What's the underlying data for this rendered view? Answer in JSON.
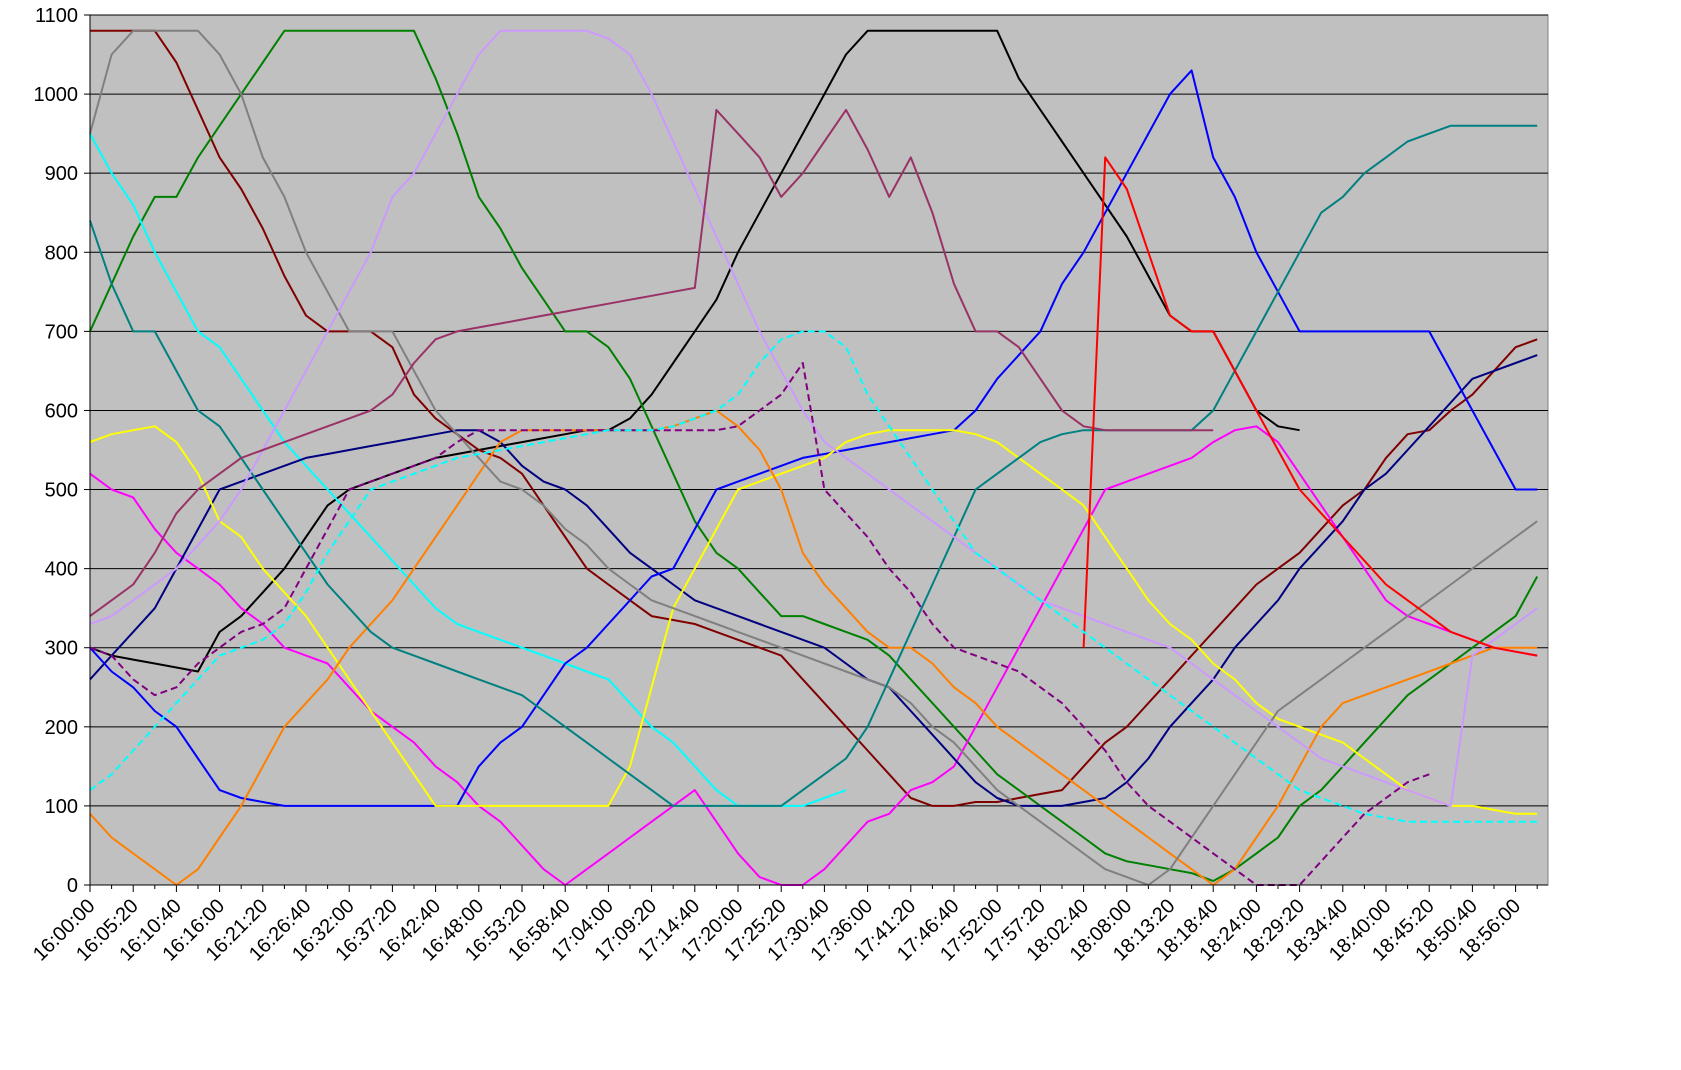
{
  "chart_data": {
    "type": "line",
    "categories": [
      "16:00:00",
      null,
      "16:05:20",
      null,
      "16:10:40",
      null,
      "16:16:00",
      null,
      "16:21:20",
      null,
      "16:26:40",
      null,
      "16:32:00",
      null,
      "16:37:20",
      null,
      "16:42:40",
      null,
      "16:48:00",
      null,
      "16:53:20",
      null,
      "16:58:40",
      null,
      "17:04:00",
      null,
      "17:09:20",
      null,
      "17:14:40",
      null,
      "17:20:00",
      null,
      "17:25:20",
      null,
      "17:30:40",
      null,
      "17:36:00",
      null,
      "17:41:20",
      null,
      "17:46:40",
      null,
      "17:52:00",
      null,
      "17:57:20",
      null,
      "18:02:40",
      null,
      "18:08:00",
      null,
      "18:13:20",
      null,
      "18:18:40",
      null,
      "18:24:00",
      null,
      "18:29:20",
      null,
      "18:34:40",
      null,
      "18:40:00",
      null,
      "18:45:20",
      null,
      "18:50:40",
      null,
      "18:56:00",
      null
    ],
    "ylim": [
      0,
      1100
    ],
    "yticks": [
      0,
      100,
      200,
      300,
      400,
      500,
      600,
      700,
      800,
      900,
      1000,
      1100
    ],
    "grid": true,
    "background": "#c0c0c0",
    "series": [
      {
        "color": "#000000",
        "values": [
          300,
          290,
          285,
          280,
          275,
          270,
          320,
          340,
          370,
          400,
          440,
          480,
          500,
          510,
          520,
          530,
          540,
          545,
          550,
          555,
          560,
          565,
          570,
          575,
          575,
          590,
          620,
          660,
          700,
          740,
          800,
          850,
          900,
          950,
          1000,
          1050,
          1080,
          1080,
          1080,
          1080,
          1080,
          1080,
          1080,
          1020,
          980,
          940,
          900,
          860,
          820,
          770,
          720,
          700,
          700,
          650,
          600,
          580,
          575,
          null,
          null,
          null,
          null,
          null,
          null,
          null,
          null,
          null,
          null,
          null
        ]
      },
      {
        "color": "#800000",
        "values": [
          1080,
          1080,
          1080,
          1080,
          1040,
          980,
          920,
          880,
          830,
          770,
          720,
          700,
          700,
          700,
          680,
          620,
          590,
          570,
          550,
          540,
          520,
          480,
          440,
          400,
          380,
          360,
          340,
          335,
          330,
          320,
          310,
          300,
          290,
          260,
          230,
          200,
          170,
          140,
          110,
          100,
          100,
          105,
          105,
          110,
          115,
          120,
          150,
          180,
          200,
          230,
          260,
          290,
          320,
          350,
          380,
          400,
          420,
          450,
          480,
          500,
          540,
          570,
          575,
          600,
          620,
          650,
          680,
          690
        ]
      },
      {
        "color": "#008000",
        "values": [
          700,
          760,
          820,
          870,
          870,
          920,
          960,
          1000,
          1040,
          1080,
          1080,
          1080,
          1080,
          1080,
          1080,
          1080,
          1020,
          950,
          870,
          830,
          780,
          740,
          700,
          700,
          680,
          640,
          580,
          520,
          460,
          420,
          400,
          370,
          340,
          340,
          330,
          320,
          310,
          290,
          260,
          230,
          200,
          170,
          140,
          120,
          100,
          80,
          60,
          40,
          30,
          25,
          20,
          15,
          5,
          20,
          40,
          60,
          100,
          120,
          150,
          180,
          210,
          240,
          260,
          280,
          300,
          320,
          340,
          390
        ]
      },
      {
        "color": "#ff00ff",
        "values": [
          520,
          500,
          490,
          450,
          420,
          400,
          380,
          350,
          330,
          300,
          290,
          280,
          250,
          220,
          200,
          180,
          150,
          130,
          100,
          80,
          50,
          20,
          0,
          20,
          40,
          60,
          80,
          100,
          120,
          80,
          40,
          10,
          0,
          0,
          20,
          50,
          80,
          90,
          120,
          130,
          150,
          200,
          250,
          300,
          350,
          400,
          450,
          500,
          510,
          520,
          530,
          540,
          560,
          575,
          580,
          560,
          520,
          480,
          440,
          400,
          360,
          340,
          330,
          320,
          310,
          300,
          295,
          290
        ]
      },
      {
        "color": "#00ffff",
        "values": [
          950,
          900,
          860,
          800,
          750,
          700,
          680,
          640,
          600,
          560,
          530,
          500,
          470,
          440,
          410,
          380,
          350,
          330,
          320,
          310,
          300,
          290,
          280,
          270,
          260,
          230,
          200,
          180,
          150,
          120,
          100,
          100,
          100,
          100,
          110,
          120,
          null,
          null,
          null,
          null,
          null,
          null,
          null,
          null,
          null,
          null,
          null,
          null,
          null,
          null,
          null,
          null,
          null,
          null,
          null,
          null,
          null,
          null,
          null,
          null,
          null,
          null,
          null,
          null,
          null,
          null,
          null,
          null
        ]
      },
      {
        "color": "#000080",
        "values": [
          260,
          290,
          320,
          350,
          400,
          450,
          500,
          510,
          520,
          530,
          540,
          545,
          550,
          555,
          560,
          565,
          570,
          575,
          575,
          560,
          530,
          510,
          500,
          480,
          450,
          420,
          400,
          380,
          360,
          350,
          340,
          330,
          320,
          310,
          300,
          280,
          260,
          250,
          220,
          190,
          160,
          130,
          110,
          100,
          100,
          100,
          105,
          110,
          130,
          160,
          200,
          230,
          260,
          300,
          330,
          360,
          400,
          430,
          460,
          500,
          520,
          550,
          580,
          610,
          640,
          650,
          660,
          670
        ]
      },
      {
        "color": "#0000ff",
        "values": [
          300,
          270,
          250,
          220,
          200,
          160,
          120,
          110,
          105,
          100,
          100,
          100,
          100,
          100,
          100,
          100,
          100,
          100,
          150,
          180,
          200,
          240,
          280,
          300,
          330,
          360,
          390,
          400,
          450,
          500,
          510,
          520,
          530,
          540,
          545,
          550,
          555,
          560,
          565,
          570,
          575,
          600,
          640,
          670,
          700,
          760,
          800,
          850,
          900,
          950,
          1000,
          1030,
          920,
          870,
          800,
          750,
          700,
          700,
          700,
          700,
          700,
          700,
          700,
          650,
          600,
          550,
          500,
          500
        ]
      },
      {
        "color": "#ffff00",
        "values": [
          560,
          570,
          575,
          580,
          560,
          520,
          460,
          440,
          400,
          370,
          340,
          300,
          260,
          220,
          180,
          140,
          100,
          100,
          100,
          100,
          100,
          100,
          100,
          100,
          100,
          150,
          250,
          350,
          400,
          450,
          500,
          510,
          520,
          530,
          540,
          560,
          570,
          575,
          575,
          575,
          575,
          570,
          560,
          540,
          520,
          500,
          480,
          440,
          400,
          360,
          330,
          310,
          280,
          260,
          230,
          210,
          200,
          190,
          180,
          160,
          140,
          120,
          110,
          100,
          100,
          95,
          90,
          90
        ]
      },
      {
        "color": "#ff8000",
        "values": [
          90,
          60,
          40,
          20,
          0,
          20,
          60,
          100,
          150,
          200,
          230,
          260,
          300,
          330,
          360,
          400,
          440,
          480,
          520,
          560,
          575,
          575,
          575,
          575,
          575,
          575,
          575,
          580,
          590,
          600,
          580,
          550,
          500,
          420,
          380,
          350,
          320,
          300,
          300,
          280,
          250,
          230,
          200,
          180,
          160,
          140,
          120,
          100,
          80,
          60,
          40,
          20,
          0,
          20,
          60,
          100,
          150,
          200,
          230,
          240,
          250,
          260,
          270,
          280,
          290,
          300,
          300,
          300
        ]
      },
      {
        "color": "#808080",
        "values": [
          950,
          1050,
          1080,
          1080,
          1080,
          1080,
          1050,
          1000,
          920,
          870,
          800,
          750,
          700,
          700,
          700,
          650,
          600,
          570,
          540,
          510,
          500,
          480,
          450,
          430,
          400,
          380,
          360,
          350,
          340,
          330,
          320,
          310,
          300,
          290,
          280,
          270,
          260,
          250,
          230,
          200,
          180,
          150,
          120,
          100,
          80,
          60,
          40,
          20,
          10,
          0,
          20,
          60,
          100,
          140,
          180,
          220,
          240,
          260,
          280,
          300,
          320,
          340,
          360,
          380,
          400,
          420,
          440,
          460
        ]
      },
      {
        "color": "#008080",
        "values": [
          840,
          760,
          700,
          700,
          650,
          600,
          580,
          540,
          500,
          460,
          420,
          380,
          350,
          320,
          300,
          290,
          280,
          270,
          260,
          250,
          240,
          220,
          200,
          180,
          160,
          140,
          120,
          100,
          100,
          100,
          100,
          100,
          100,
          120,
          140,
          160,
          200,
          260,
          320,
          380,
          440,
          500,
          520,
          540,
          560,
          570,
          575,
          575,
          575,
          575,
          575,
          575,
          600,
          650,
          700,
          750,
          800,
          850,
          870,
          900,
          920,
          940,
          950,
          960,
          960,
          960,
          960,
          960
        ]
      },
      {
        "color": "#cc99ff",
        "values": [
          330,
          340,
          360,
          380,
          400,
          430,
          460,
          500,
          550,
          600,
          650,
          700,
          750,
          800,
          870,
          900,
          950,
          1000,
          1050,
          1080,
          1080,
          1080,
          1080,
          1080,
          1070,
          1050,
          1000,
          940,
          880,
          820,
          760,
          700,
          650,
          600,
          560,
          540,
          520,
          500,
          480,
          460,
          440,
          420,
          400,
          380,
          360,
          350,
          340,
          330,
          320,
          310,
          300,
          280,
          260,
          240,
          220,
          200,
          180,
          160,
          150,
          140,
          130,
          120,
          110,
          100,
          290,
          310,
          330,
          350
        ]
      },
      {
        "color": "#993366",
        "values": [
          340,
          360,
          380,
          420,
          470,
          500,
          520,
          540,
          550,
          560,
          570,
          580,
          590,
          600,
          620,
          660,
          690,
          700,
          705,
          710,
          715,
          720,
          725,
          730,
          735,
          740,
          745,
          750,
          755,
          980,
          950,
          920,
          870,
          900,
          940,
          980,
          930,
          870,
          920,
          850,
          760,
          700,
          700,
          680,
          640,
          600,
          580,
          575,
          575,
          575,
          575,
          575,
          575,
          null,
          null,
          null,
          null,
          null,
          null,
          null,
          null,
          null,
          null,
          null,
          null,
          null,
          null,
          null
        ]
      },
      {
        "color": "#ff0000",
        "values": [
          null,
          null,
          null,
          null,
          null,
          null,
          null,
          null,
          null,
          null,
          null,
          null,
          null,
          null,
          null,
          null,
          null,
          null,
          null,
          null,
          null,
          null,
          null,
          null,
          null,
          null,
          null,
          null,
          null,
          null,
          null,
          null,
          null,
          null,
          null,
          null,
          null,
          null,
          null,
          null,
          null,
          null,
          null,
          null,
          null,
          null,
          300,
          920,
          880,
          800,
          720,
          700,
          700,
          650,
          600,
          550,
          500,
          470,
          440,
          410,
          380,
          360,
          340,
          320,
          310,
          300,
          295,
          290
        ]
      },
      {
        "color": "#800080",
        "dashed": true,
        "values": [
          300,
          290,
          260,
          240,
          250,
          280,
          300,
          320,
          330,
          350,
          400,
          450,
          500,
          510,
          520,
          530,
          540,
          560,
          575,
          575,
          575,
          575,
          575,
          575,
          575,
          575,
          575,
          575,
          575,
          575,
          580,
          600,
          620,
          660,
          500,
          470,
          440,
          400,
          370,
          330,
          300,
          290,
          280,
          270,
          250,
          230,
          200,
          170,
          130,
          100,
          80,
          60,
          40,
          20,
          0,
          0,
          0,
          30,
          60,
          90,
          110,
          130,
          140,
          null,
          null,
          null,
          null,
          null
        ]
      },
      {
        "color": "#00ffff",
        "dashed": true,
        "values": [
          120,
          140,
          170,
          200,
          230,
          260,
          290,
          300,
          310,
          330,
          370,
          420,
          460,
          500,
          510,
          520,
          530,
          540,
          545,
          550,
          555,
          560,
          565,
          570,
          575,
          575,
          575,
          580,
          590,
          600,
          620,
          660,
          690,
          700,
          700,
          680,
          620,
          580,
          540,
          500,
          460,
          420,
          400,
          380,
          360,
          340,
          320,
          300,
          280,
          260,
          240,
          220,
          200,
          180,
          160,
          140,
          120,
          110,
          100,
          90,
          85,
          80,
          80,
          80,
          80,
          80,
          80,
          80
        ]
      }
    ]
  }
}
